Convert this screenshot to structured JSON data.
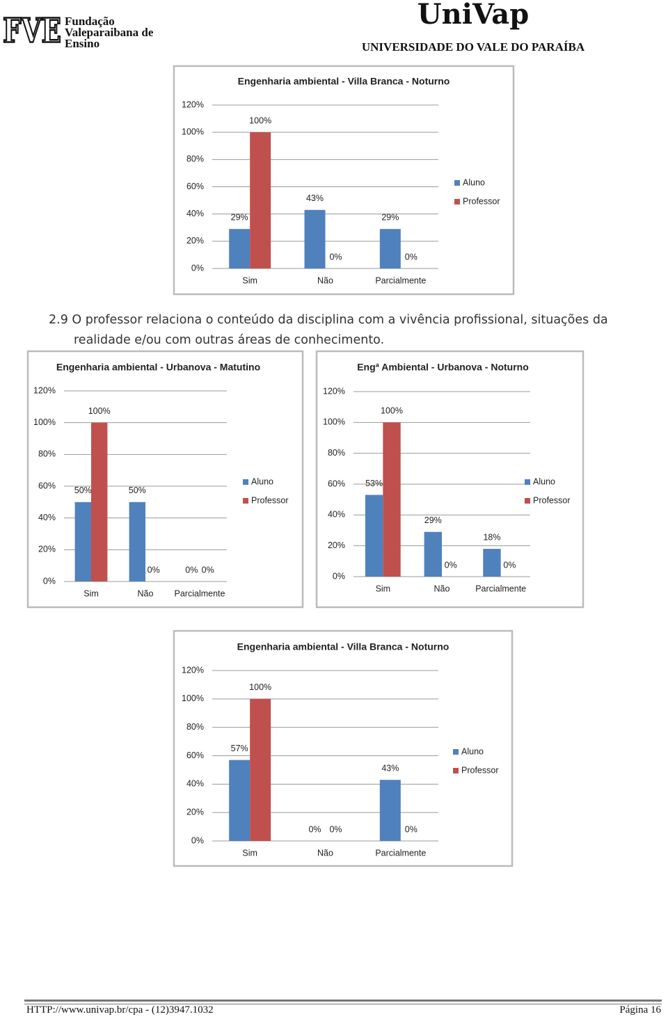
{
  "header": {
    "logo_left": "FVE",
    "org_lines": [
      "Fundação",
      "Valeparaibana de",
      "Ensino"
    ],
    "logo_right": "UniVap",
    "university": "UNIVERSIDADE DO VALE DO PARAÍBA"
  },
  "section": {
    "number": "2.9",
    "text": "O professor relaciona o conteúdo da disciplina com a vivência profissional, situações da realidade e/ou com outras áreas de conhecimento."
  },
  "footer": {
    "left": "HTTP://www.univap.br/cpa - (12)3947.1032",
    "right": "Página 16"
  },
  "chart_data": [
    {
      "type": "bar",
      "title": "Engenharia ambiental - Villa Branca - Noturno",
      "categories": [
        "Sim",
        "Não",
        "Parcialmente"
      ],
      "series": [
        {
          "name": "Aluno",
          "color": "#4f81bd",
          "values": [
            29,
            43,
            29
          ],
          "value_labels": [
            "29%",
            "43%",
            "29%"
          ]
        },
        {
          "name": "Professor",
          "color": "#c0504d",
          "values": [
            100,
            0,
            0
          ],
          "value_labels": [
            "100%",
            "0%",
            "0%"
          ]
        }
      ],
      "ylim": [
        0,
        120
      ],
      "yticks": [
        {
          "value": 0,
          "label": "0%"
        },
        {
          "value": 20,
          "label": "20%"
        },
        {
          "value": 40,
          "label": "40%"
        },
        {
          "value": 60,
          "label": "60%"
        },
        {
          "value": 80,
          "label": "80%"
        },
        {
          "value": 100,
          "label": "100%"
        },
        {
          "value": 120,
          "label": "120%"
        }
      ],
      "grid": true,
      "legend": "right"
    },
    {
      "type": "bar",
      "title": "Engenharia ambiental - Urbanova - Matutino",
      "categories": [
        "Sim",
        "Não",
        "Parcialmente"
      ],
      "series": [
        {
          "name": "Aluno",
          "color": "#4f81bd",
          "values": [
            50,
            50,
            0
          ],
          "value_labels": [
            "50%",
            "50%",
            "0%"
          ]
        },
        {
          "name": "Professor",
          "color": "#c0504d",
          "values": [
            100,
            0,
            0
          ],
          "value_labels": [
            "100%",
            "0%",
            "0%"
          ]
        }
      ],
      "ylim": [
        0,
        120
      ],
      "yticks": [
        {
          "value": 0,
          "label": "0%"
        },
        {
          "value": 20,
          "label": "20%"
        },
        {
          "value": 40,
          "label": "40%"
        },
        {
          "value": 60,
          "label": "60%"
        },
        {
          "value": 80,
          "label": "80%"
        },
        {
          "value": 100,
          "label": "100%"
        },
        {
          "value": 120,
          "label": "120%"
        }
      ],
      "grid": true,
      "legend": "right"
    },
    {
      "type": "bar",
      "title": "Engª Ambiental - Urbanova - Noturno",
      "categories": [
        "Sim",
        "Não",
        "Parcialmente"
      ],
      "series": [
        {
          "name": "Aluno",
          "color": "#4f81bd",
          "values": [
            53,
            29,
            18
          ],
          "value_labels": [
            "53%",
            "29%",
            "18%"
          ]
        },
        {
          "name": "Professor",
          "color": "#c0504d",
          "values": [
            100,
            0,
            0
          ],
          "value_labels": [
            "100%",
            "0%",
            "0%"
          ]
        }
      ],
      "ylim": [
        0,
        120
      ],
      "yticks": [
        {
          "value": 0,
          "label": "0%"
        },
        {
          "value": 20,
          "label": "20%"
        },
        {
          "value": 40,
          "label": "40%"
        },
        {
          "value": 60,
          "label": "60%"
        },
        {
          "value": 80,
          "label": "80%"
        },
        {
          "value": 100,
          "label": "100%"
        },
        {
          "value": 120,
          "label": "120%"
        }
      ],
      "grid": true,
      "legend": "right"
    },
    {
      "type": "bar",
      "title": "Engenharia ambiental - Villa Branca - Noturno",
      "categories": [
        "Sim",
        "Não",
        "Parcialmente"
      ],
      "series": [
        {
          "name": "Aluno",
          "color": "#4f81bd",
          "values": [
            57,
            0,
            43
          ],
          "value_labels": [
            "57%",
            "0%",
            "43%"
          ]
        },
        {
          "name": "Professor",
          "color": "#c0504d",
          "values": [
            100,
            0,
            0
          ],
          "value_labels": [
            "100%",
            "0%",
            "0%"
          ]
        }
      ],
      "ylim": [
        0,
        120
      ],
      "yticks": [
        {
          "value": 0,
          "label": "0%"
        },
        {
          "value": 20,
          "label": "20%"
        },
        {
          "value": 40,
          "label": "40%"
        },
        {
          "value": 60,
          "label": "60%"
        },
        {
          "value": 80,
          "label": "80%"
        },
        {
          "value": 100,
          "label": "100%"
        },
        {
          "value": 120,
          "label": "120%"
        }
      ],
      "grid": true,
      "legend": "right"
    }
  ]
}
